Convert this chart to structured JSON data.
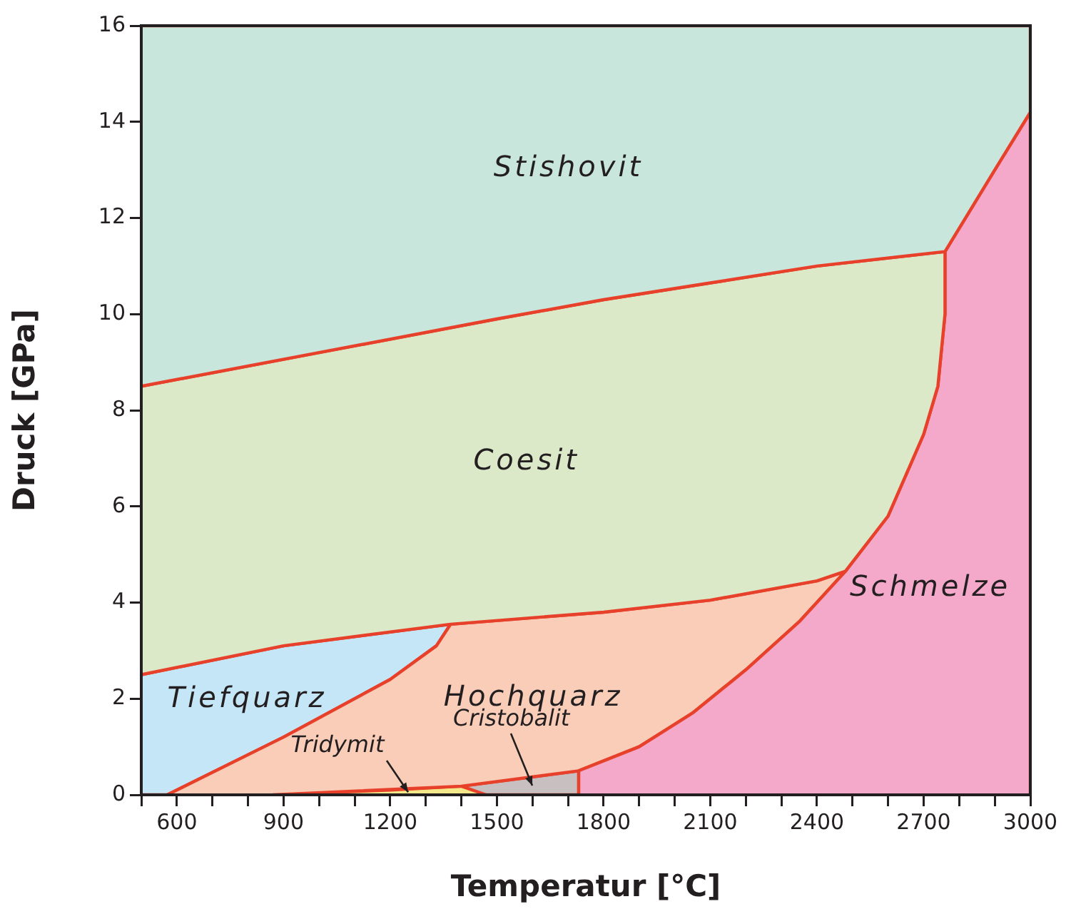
{
  "chart_data": {
    "type": "area",
    "xlabel": "Temperatur [°C]",
    "ylabel": "Druck [GPa]",
    "xlim": [
      500,
      3000
    ],
    "ylim": [
      0,
      16
    ],
    "xticks": [
      {
        "value": 500,
        "label": null
      },
      600,
      {
        "value": 700,
        "label": null
      },
      {
        "value": 800,
        "label": null
      },
      900,
      {
        "value": 1000,
        "label": null
      },
      {
        "value": 1100,
        "label": null
      },
      1200,
      {
        "value": 1300,
        "label": null
      },
      {
        "value": 1400,
        "label": null
      },
      1500,
      {
        "value": 1600,
        "label": null
      },
      {
        "value": 1700,
        "label": null
      },
      1800,
      {
        "value": 1900,
        "label": null
      },
      {
        "value": 2000,
        "label": null
      },
      2100,
      {
        "value": 2200,
        "label": null
      },
      {
        "value": 2300,
        "label": null
      },
      2400,
      {
        "value": 2500,
        "label": null
      },
      {
        "value": 2600,
        "label": null
      },
      2700,
      {
        "value": 2800,
        "label": null
      },
      {
        "value": 2900,
        "label": null
      },
      3000
    ],
    "yticks": [
      0,
      2,
      4,
      6,
      8,
      10,
      12,
      14,
      16
    ],
    "legend": false,
    "marker": "none",
    "line_style": "solid",
    "series": [
      {
        "name": "Stishovit",
        "color": "#c9e6dc",
        "x": [
          500,
          1000,
          1500,
          1800,
          2100,
          2400,
          2760,
          2900,
          3000,
          3000,
          500
        ],
        "values": [
          8.5,
          9.2,
          9.9,
          10.3,
          10.65,
          11.0,
          11.3,
          13,
          14.2,
          16,
          16
        ]
      },
      {
        "name": "Coesit",
        "color": "#dbe9c9",
        "x": [
          500,
          1000,
          1500,
          1800,
          2100,
          2400,
          2760,
          2760,
          2740,
          2700,
          2600,
          2480,
          2400,
          2100,
          1800,
          1370,
          900,
          500
        ],
        "values": [
          8.5,
          9.2,
          9.9,
          10.3,
          10.65,
          11.0,
          11.3,
          10,
          8.5,
          7.5,
          5.8,
          4.65,
          4.45,
          4.05,
          3.8,
          3.55,
          3.1,
          2.5
        ]
      },
      {
        "name": "Schmelze",
        "color": "#f4a9cb",
        "x": [
          1730,
          1730,
          1900,
          2050,
          2200,
          2350,
          2480,
          2600,
          2700,
          2740,
          2760,
          2760,
          2900,
          3000,
          3000
        ],
        "values": [
          0,
          0.5,
          1.0,
          1.7,
          2.6,
          3.6,
          4.65,
          5.8,
          7.5,
          8.5,
          10,
          11.3,
          13,
          14.2,
          0
        ]
      },
      {
        "name": "Hochquarz",
        "color": "#f9cdb8",
        "x": [
          573,
          900,
          1200,
          1330,
          1370,
          1800,
          2100,
          2400,
          2480,
          2350,
          2200,
          2050,
          1900,
          1730,
          1400,
          870
        ],
        "values": [
          0,
          1.2,
          2.4,
          3.1,
          3.55,
          3.8,
          4.05,
          4.45,
          4.65,
          3.6,
          2.6,
          1.7,
          1.0,
          0.5,
          0.18,
          0
        ]
      },
      {
        "name": "Tiefquarz",
        "color": "#c5e6f6",
        "x": [
          500,
          573,
          900,
          1200,
          1330,
          1370,
          900,
          500
        ],
        "values": [
          0,
          0,
          1.2,
          2.4,
          3.1,
          3.55,
          3.1,
          2.5
        ]
      },
      {
        "name": "Tridymit",
        "color": "#f3e98a",
        "x": [
          870,
          1200,
          1400,
          1470
        ],
        "values": [
          0,
          0.1,
          0.18,
          0
        ]
      },
      {
        "name": "Cristobalit",
        "color": "#c8c0c0",
        "x": [
          1400,
          1730,
          1730,
          1470
        ],
        "values": [
          0.18,
          0.5,
          0,
          0
        ]
      }
    ]
  }
}
